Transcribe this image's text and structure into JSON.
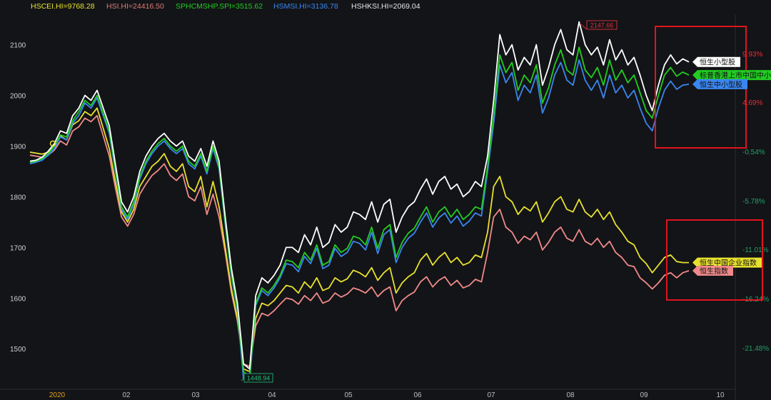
{
  "legend": [
    {
      "label": "HSCEI.HI=9768.28",
      "color": "#e7e12e"
    },
    {
      "label": "HSI.HI=24416.50",
      "color": "#e07a78"
    },
    {
      "label": "SPHCMSHP.SPI=3515.62",
      "color": "#22cc22"
    },
    {
      "label": "HSMSI.HI=3136.78",
      "color": "#3a86f0"
    },
    {
      "label": "HSHKSI.HI=2069.04",
      "color": "#e6e6e6"
    }
  ],
  "chart_data": {
    "type": "line",
    "x_ticks": [
      "2020",
      "02",
      "03",
      "04",
      "05",
      "06",
      "07",
      "08",
      "09",
      "10"
    ],
    "y_ticks": [
      1500,
      1600,
      1700,
      1800,
      1900,
      2000,
      2100
    ],
    "ylim": [
      1420,
      2160
    ],
    "pct_ticks": [
      "9.93%",
      "4.69%",
      "-0.54%",
      "-5.78%",
      "-11.01%",
      "-16.24%",
      "-21.48%"
    ],
    "pct_colors": [
      "#e0303a",
      "#e0303a",
      "#22a06b",
      "#22a06b",
      "#22a06b",
      "#22a06b",
      "#22a06b"
    ],
    "max_marker": "2147.66",
    "min_marker": "1448.94",
    "end_labels": [
      {
        "text": "恒生小型股",
        "color": "#ffffff",
        "value": 2066
      },
      {
        "text": "标普香港上市中国中小盘",
        "color": "#22cc22",
        "value": 2040
      },
      {
        "text": "恒生中小型股",
        "color": "#3a86f0",
        "value": 2022
      },
      {
        "text": "恒生中国企业指数",
        "color": "#e7e12e",
        "value": 1670
      },
      {
        "text": "恒生指数",
        "color": "#f08a8a",
        "value": 1654
      }
    ],
    "series": [
      {
        "name": "HSHKSI.HI",
        "color": "#ffffff",
        "values": [
          1870,
          1872,
          1878,
          1890,
          1905,
          1930,
          1925,
          1960,
          1975,
          2000,
          1990,
          2010,
          1975,
          1940,
          1865,
          1790,
          1770,
          1800,
          1850,
          1880,
          1900,
          1915,
          1925,
          1910,
          1900,
          1910,
          1880,
          1870,
          1895,
          1860,
          1910,
          1870,
          1760,
          1660,
          1590,
          1470,
          1460,
          1605,
          1640,
          1630,
          1645,
          1665,
          1700,
          1700,
          1690,
          1725,
          1705,
          1740,
          1700,
          1710,
          1745,
          1730,
          1740,
          1770,
          1765,
          1755,
          1790,
          1750,
          1785,
          1795,
          1730,
          1760,
          1780,
          1790,
          1815,
          1835,
          1805,
          1830,
          1840,
          1815,
          1825,
          1800,
          1810,
          1830,
          1820,
          1880,
          1990,
          2120,
          2080,
          2100,
          2050,
          2075,
          2060,
          2100,
          2020,
          2055,
          2100,
          2130,
          2090,
          2080,
          2145,
          2100,
          2080,
          2095,
          2060,
          2110,
          2070,
          2090,
          2060,
          2075,
          2040,
          2000,
          1970,
          2020,
          2060,
          2080,
          2062,
          2072,
          2066
        ]
      },
      {
        "name": "SPHCMSHP.SPI",
        "color": "#22cc22",
        "values": [
          1868,
          1870,
          1875,
          1885,
          1900,
          1922,
          1918,
          1950,
          1968,
          1990,
          1980,
          2000,
          1965,
          1930,
          1855,
          1780,
          1760,
          1790,
          1840,
          1870,
          1890,
          1905,
          1915,
          1900,
          1890,
          1900,
          1870,
          1860,
          1885,
          1850,
          1900,
          1860,
          1750,
          1650,
          1580,
          1455,
          1445,
          1590,
          1620,
          1610,
          1625,
          1645,
          1675,
          1672,
          1660,
          1690,
          1675,
          1705,
          1665,
          1672,
          1705,
          1690,
          1698,
          1722,
          1718,
          1705,
          1740,
          1698,
          1735,
          1745,
          1680,
          1710,
          1728,
          1738,
          1760,
          1780,
          1750,
          1770,
          1780,
          1760,
          1775,
          1755,
          1765,
          1780,
          1775,
          1860,
          1960,
          2080,
          2045,
          2065,
          2010,
          2040,
          2025,
          2060,
          1985,
          2015,
          2060,
          2090,
          2050,
          2040,
          2095,
          2050,
          2035,
          2055,
          2020,
          2070,
          2030,
          2050,
          2025,
          2040,
          2005,
          1970,
          1955,
          2000,
          2040,
          2055,
          2038,
          2046,
          2040
        ]
      },
      {
        "name": "HSMSI.HI",
        "color": "#3a86f0",
        "values": [
          1865,
          1868,
          1872,
          1882,
          1895,
          1918,
          1912,
          1945,
          1960,
          1985,
          1975,
          1995,
          1960,
          1925,
          1850,
          1775,
          1755,
          1785,
          1835,
          1865,
          1885,
          1900,
          1910,
          1895,
          1885,
          1895,
          1865,
          1855,
          1880,
          1845,
          1895,
          1855,
          1745,
          1645,
          1575,
          1440,
          1435,
          1585,
          1615,
          1605,
          1620,
          1640,
          1668,
          1665,
          1652,
          1682,
          1668,
          1698,
          1658,
          1665,
          1698,
          1682,
          1690,
          1712,
          1708,
          1695,
          1730,
          1688,
          1725,
          1735,
          1670,
          1700,
          1718,
          1728,
          1750,
          1768,
          1740,
          1758,
          1768,
          1748,
          1762,
          1742,
          1752,
          1768,
          1762,
          1850,
          1945,
          2060,
          2025,
          2045,
          1990,
          2020,
          2005,
          2040,
          1965,
          1995,
          2040,
          2065,
          2030,
          2020,
          2070,
          2030,
          2010,
          2030,
          1995,
          2040,
          2005,
          2020,
          1995,
          2010,
          1975,
          1945,
          1930,
          1975,
          2010,
          2028,
          2012,
          2020,
          2022
        ]
      },
      {
        "name": "HSCEI.HI",
        "color": "#e7e12e",
        "values": [
          1888,
          1886,
          1884,
          1888,
          1900,
          1920,
          1912,
          1942,
          1950,
          1968,
          1960,
          1975,
          1935,
          1895,
          1830,
          1770,
          1750,
          1775,
          1820,
          1840,
          1860,
          1870,
          1885,
          1860,
          1850,
          1865,
          1820,
          1810,
          1840,
          1780,
          1830,
          1780,
          1700,
          1620,
          1560,
          1460,
          1455,
          1560,
          1590,
          1585,
          1595,
          1610,
          1625,
          1622,
          1610,
          1632,
          1620,
          1640,
          1615,
          1620,
          1640,
          1632,
          1638,
          1655,
          1650,
          1642,
          1660,
          1635,
          1650,
          1660,
          1610,
          1630,
          1642,
          1650,
          1675,
          1688,
          1665,
          1680,
          1690,
          1670,
          1680,
          1665,
          1670,
          1685,
          1680,
          1730,
          1820,
          1840,
          1800,
          1790,
          1765,
          1780,
          1772,
          1790,
          1750,
          1768,
          1790,
          1800,
          1775,
          1770,
          1795,
          1770,
          1760,
          1775,
          1755,
          1770,
          1745,
          1730,
          1712,
          1705,
          1680,
          1668,
          1650,
          1665,
          1680,
          1685,
          1672,
          1670,
          1670
        ]
      },
      {
        "name": "HSI.HI",
        "color": "#f08a8a",
        "values": [
          1882,
          1880,
          1878,
          1882,
          1892,
          1910,
          1902,
          1930,
          1938,
          1955,
          1948,
          1960,
          1920,
          1880,
          1818,
          1760,
          1742,
          1765,
          1805,
          1825,
          1842,
          1852,
          1865,
          1842,
          1832,
          1845,
          1800,
          1792,
          1820,
          1765,
          1805,
          1760,
          1690,
          1612,
          1555,
          1470,
          1465,
          1545,
          1570,
          1565,
          1575,
          1588,
          1600,
          1597,
          1588,
          1605,
          1595,
          1610,
          1590,
          1595,
          1610,
          1602,
          1608,
          1620,
          1616,
          1610,
          1622,
          1603,
          1615,
          1622,
          1575,
          1595,
          1605,
          1612,
          1632,
          1642,
          1622,
          1635,
          1642,
          1625,
          1635,
          1620,
          1625,
          1637,
          1632,
          1690,
          1760,
          1775,
          1740,
          1730,
          1708,
          1722,
          1715,
          1730,
          1695,
          1710,
          1730,
          1740,
          1718,
          1712,
          1735,
          1712,
          1705,
          1718,
          1700,
          1712,
          1690,
          1680,
          1665,
          1662,
          1640,
          1630,
          1618,
          1630,
          1645,
          1650,
          1640,
          1650,
          1654
        ]
      }
    ]
  }
}
